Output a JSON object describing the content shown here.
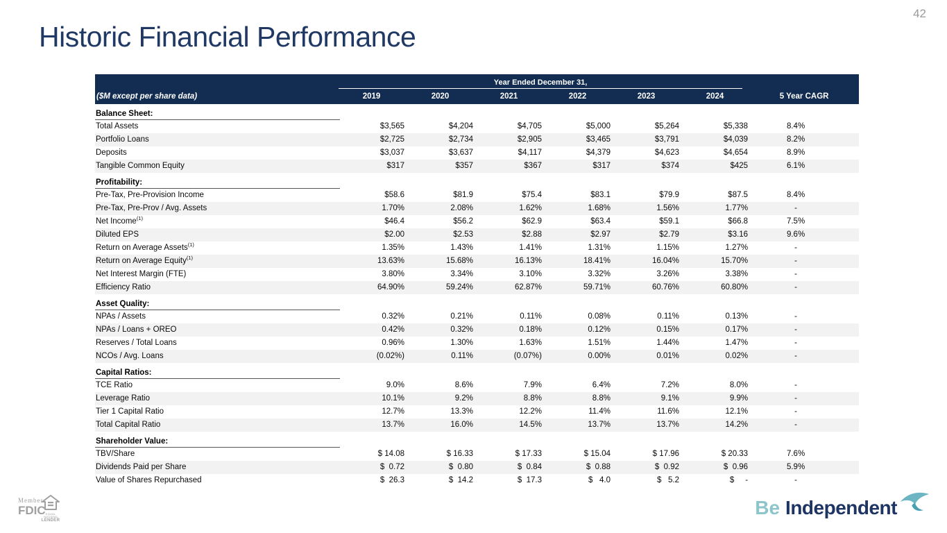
{
  "slide": {
    "page_number": "42",
    "title": "Historic Financial Performance"
  },
  "table": {
    "group_header": "Year Ended December 31,",
    "unit_label": "($M except per share data)",
    "years": [
      "2019",
      "2020",
      "2021",
      "2022",
      "2023",
      "2024"
    ],
    "cagr_label": "5 Year CAGR",
    "sections": [
      {
        "label": "Balance Sheet:",
        "rows": [
          {
            "label": "Total Assets",
            "values": [
              "$3,565",
              "$4,204",
              "$4,705",
              "$5,000",
              "$5,264",
              "$5,338",
              "8.4%"
            ]
          },
          {
            "label": "Portfolio Loans",
            "values": [
              "$2,725",
              "$2,734",
              "$2,905",
              "$3,465",
              "$3,791",
              "$4,039",
              "8.2%"
            ]
          },
          {
            "label": "Deposits",
            "values": [
              "$3,037",
              "$3,637",
              "$4,117",
              "$4,379",
              "$4,623",
              "$4,654",
              "8.9%"
            ]
          },
          {
            "label": "Tangible Common Equity",
            "values": [
              "$317",
              "$357",
              "$367",
              "$317",
              "$374",
              "$425",
              "6.1%"
            ]
          }
        ]
      },
      {
        "label": "Profitability:",
        "rows": [
          {
            "label": "Pre-Tax, Pre-Provision Income",
            "values": [
              "$58.6",
              "$81.9",
              "$75.4",
              "$83.1",
              "$79.9",
              "$87.5",
              "8.4%"
            ]
          },
          {
            "label": "Pre-Tax, Pre-Prov / Avg. Assets",
            "values": [
              "1.70%",
              "2.08%",
              "1.62%",
              "1.68%",
              "1.56%",
              "1.77%",
              "-"
            ]
          },
          {
            "label": "Net Income",
            "footnote": "(1)",
            "values": [
              "$46.4",
              "$56.2",
              "$62.9",
              "$63.4",
              "$59.1",
              "$66.8",
              "7.5%"
            ]
          },
          {
            "label": "Diluted EPS",
            "values": [
              "$2.00",
              "$2.53",
              "$2.88",
              "$2.97",
              "$2.79",
              "$3.16",
              "9.6%"
            ]
          },
          {
            "label": "Return on Average Assets",
            "footnote": "(1)",
            "values": [
              "1.35%",
              "1.43%",
              "1.41%",
              "1.31%",
              "1.15%",
              "1.27%",
              "-"
            ]
          },
          {
            "label": "Return on Average Equity",
            "footnote": "(1)",
            "values": [
              "13.63%",
              "15.68%",
              "16.13%",
              "18.41%",
              "16.04%",
              "15.70%",
              "-"
            ]
          },
          {
            "label": "Net Interest Margin (FTE)",
            "values": [
              "3.80%",
              "3.34%",
              "3.10%",
              "3.32%",
              "3.26%",
              "3.38%",
              "-"
            ]
          },
          {
            "label": "Efficiency Ratio",
            "values": [
              "64.90%",
              "59.24%",
              "62.87%",
              "59.71%",
              "60.76%",
              "60.80%",
              "-"
            ]
          }
        ]
      },
      {
        "label": "Asset Quality:",
        "rows": [
          {
            "label": "NPAs / Assets",
            "values": [
              "0.32%",
              "0.21%",
              "0.11%",
              "0.08%",
              "0.11%",
              "0.13%",
              "-"
            ]
          },
          {
            "label": "NPAs / Loans + OREO",
            "values": [
              "0.42%",
              "0.32%",
              "0.18%",
              "0.12%",
              "0.15%",
              "0.17%",
              "-"
            ]
          },
          {
            "label": "Reserves / Total Loans",
            "values": [
              "0.96%",
              "1.30%",
              "1.63%",
              "1.51%",
              "1.44%",
              "1.47%",
              "-"
            ]
          },
          {
            "label": "NCOs / Avg. Loans",
            "values": [
              "(0.02%)",
              "0.11%",
              "(0.07%)",
              "0.00%",
              "0.01%",
              "0.02%",
              "-"
            ]
          }
        ]
      },
      {
        "label": "Capital Ratios:",
        "rows": [
          {
            "label": "TCE Ratio",
            "values": [
              "9.0%",
              "8.6%",
              "7.9%",
              "6.4%",
              "7.2%",
              "8.0%",
              "-"
            ]
          },
          {
            "label": "Leverage Ratio",
            "values": [
              "10.1%",
              "9.2%",
              "8.8%",
              "8.8%",
              "9.1%",
              "9.9%",
              "-"
            ]
          },
          {
            "label": "Tier 1 Capital Ratio",
            "values": [
              "12.7%",
              "13.3%",
              "12.2%",
              "11.4%",
              "11.6%",
              "12.1%",
              "-"
            ]
          },
          {
            "label": "Total Capital Ratio",
            "values": [
              "13.7%",
              "16.0%",
              "14.5%",
              "13.7%",
              "13.7%",
              "14.2%",
              "-"
            ]
          }
        ]
      },
      {
        "label": "Shareholder Value:",
        "rows": [
          {
            "label": "TBV/Share",
            "values": [
              "$ 14.08",
              "$ 16.33",
              "$ 17.33",
              "$ 15.04",
              "$ 17.96",
              "$ 20.33",
              "7.6%"
            ]
          },
          {
            "label": "Dividends Paid per Share",
            "values": [
              "$  0.72",
              "$  0.80",
              "$  0.84",
              "$  0.88",
              "$  0.92",
              "$  0.96",
              "5.9%"
            ]
          },
          {
            "label": "Value of Shares Repurchased",
            "values": [
              "$  26.3",
              "$  14.2",
              "$  17.3",
              "$   4.0",
              "$   5.2",
              "$     -",
              "-"
            ]
          }
        ]
      }
    ]
  },
  "footer": {
    "member": "Member",
    "fdic": "FDIC",
    "ehl_line1": "EQUAL HOUSING",
    "ehl_line2": "LENDER",
    "tagline_light": "Be",
    "tagline_bold": "Independent"
  },
  "colors": {
    "header_navy": "#132d52",
    "title_navy": "#1f3864",
    "stripe_gray": "#f2f2f2",
    "brand_teal": "#8cc6cb",
    "footer_gray": "#a0a0a0"
  }
}
